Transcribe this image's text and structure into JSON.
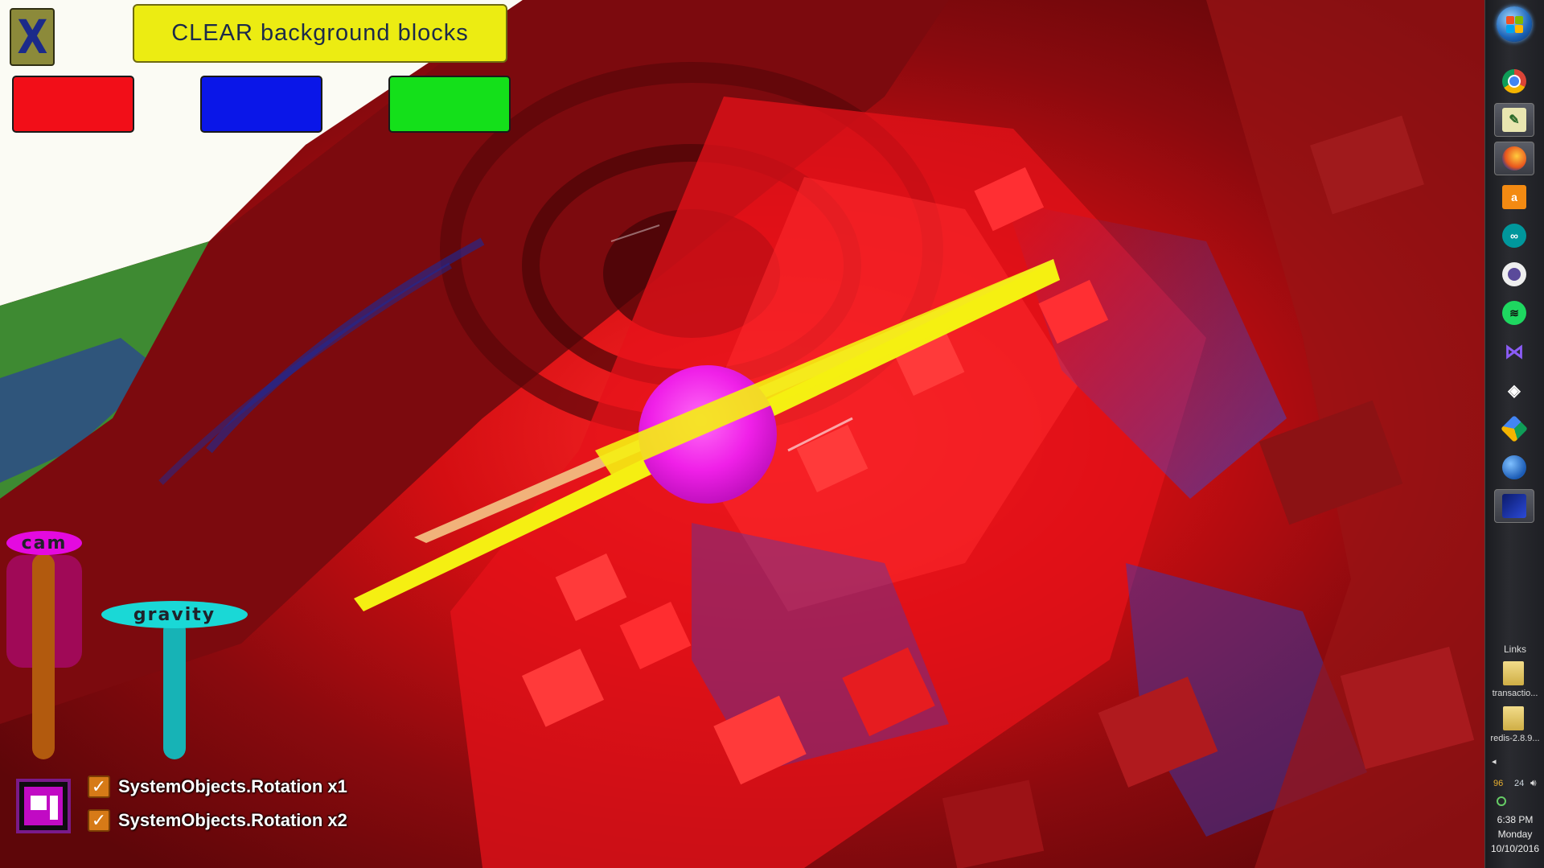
{
  "toolbar": {
    "close_label": "X",
    "clear_label": "CLEAR background blocks"
  },
  "sliders": {
    "cam_label": "cam",
    "gravity_label": "gravity"
  },
  "checkboxes": [
    {
      "label": "SystemObjects.Rotation x1",
      "checked": true
    },
    {
      "label": "SystemObjects.Rotation x2",
      "checked": true
    }
  ],
  "colors": {
    "red_button": "#f20e18",
    "blue_button": "#0a16e8",
    "green_button": "#14e01a",
    "clear_button": "#ecec12",
    "sphere": "#f020e8",
    "rod": "#f5ef12",
    "plank": "#f1b27a"
  },
  "taskbar": {
    "pinned_icons": [
      "chrome-icon",
      "notepad-icon",
      "firefox-icon",
      "amazon-icon",
      "arduino-icon",
      "github-icon",
      "spotify-icon",
      "visual-studio-icon",
      "unity-icon",
      "google-drive-icon",
      "globe-icon",
      "app-icon"
    ],
    "links_label": "Links",
    "folders": [
      "transactio...",
      "redis-2.8.9..."
    ],
    "tray_numbers": [
      "96",
      "24"
    ],
    "time": "6:38 PM",
    "day": "Monday",
    "date": "10/10/2016"
  }
}
